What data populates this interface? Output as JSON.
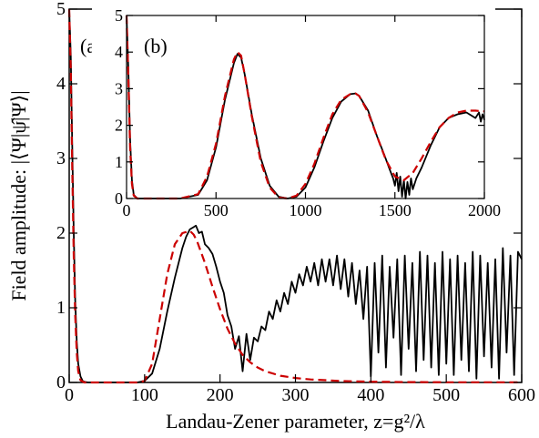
{
  "colors": {
    "numerical": "#000000",
    "analytic": "#cc0000",
    "background": "#ffffff"
  },
  "chart_data": [
    {
      "panel": "(a)",
      "type": "line",
      "xlabel": "Landau-Zener parameter, z=g²/λ",
      "ylabel": "Field amplitude: |⟨Ψ|ψ̂|Ψ⟩|",
      "xlim": [
        0,
        600
      ],
      "ylim": [
        0,
        5
      ],
      "xticks": [
        0,
        100,
        200,
        300,
        400,
        500,
        600
      ],
      "yticks": [
        0,
        1,
        2,
        3,
        4,
        5
      ],
      "grid": false,
      "series": [
        {
          "style": "solid-black",
          "x": [
            0,
            2,
            4,
            6,
            8,
            10,
            12,
            15,
            18,
            20,
            25,
            30,
            40,
            50,
            60,
            70,
            80,
            90,
            100,
            110,
            120,
            130,
            140,
            150,
            155,
            160,
            165,
            168,
            172,
            176,
            180,
            185,
            190,
            195,
            200,
            205,
            210,
            215,
            220,
            225,
            230,
            235,
            240,
            245,
            250,
            255,
            260,
            265,
            270,
            275,
            280,
            285,
            290,
            295,
            300,
            305,
            310,
            315,
            320,
            325,
            330,
            335,
            340,
            345,
            350,
            355,
            360,
            365,
            370,
            375,
            380,
            385,
            390,
            395,
            400,
            405,
            410,
            415,
            420,
            425,
            430,
            435,
            440,
            445,
            450,
            455,
            460,
            465,
            470,
            475,
            480,
            485,
            490,
            495,
            500,
            505,
            510,
            515,
            520,
            525,
            530,
            535,
            540,
            545,
            550,
            555,
            560,
            565,
            570,
            575,
            580,
            585,
            590,
            595,
            600
          ],
          "y": [
            5.0,
            4.4,
            3.2,
            2.0,
            1.1,
            0.55,
            0.25,
            0.08,
            0.02,
            0.01,
            0.0,
            0.0,
            0.0,
            0.0,
            0.0,
            0.0,
            0.0,
            0.0,
            0.02,
            0.12,
            0.45,
            0.95,
            1.4,
            1.8,
            1.95,
            2.05,
            2.08,
            2.1,
            2.0,
            2.02,
            1.85,
            1.8,
            1.72,
            1.55,
            1.35,
            1.2,
            0.9,
            0.75,
            0.45,
            0.62,
            0.15,
            0.65,
            0.3,
            0.6,
            0.55,
            0.75,
            0.7,
            0.95,
            0.85,
            1.1,
            0.95,
            1.2,
            1.05,
            1.35,
            1.2,
            1.45,
            1.3,
            1.55,
            1.35,
            1.6,
            1.3,
            1.65,
            1.35,
            1.65,
            1.3,
            1.7,
            1.25,
            1.65,
            1.15,
            1.6,
            1.05,
            1.5,
            0.85,
            1.55,
            0.08,
            1.6,
            0.4,
            1.7,
            0.2,
            1.55,
            0.6,
            1.65,
            0.1,
            1.7,
            0.45,
            1.6,
            0.15,
            1.75,
            0.3,
            1.7,
            0.2,
            1.6,
            0.1,
            1.75,
            0.25,
            1.65,
            0.1,
            1.7,
            0.3,
            1.6,
            0.15,
            1.75,
            0.05,
            1.7,
            0.35,
            1.6,
            0.2,
            1.65,
            0.05,
            1.8,
            0.4,
            1.7,
            0.1,
            1.75,
            1.65
          ]
        },
        {
          "style": "dashed-red",
          "x": [
            0,
            2,
            4,
            6,
            8,
            10,
            12,
            15,
            20,
            30,
            40,
            50,
            60,
            70,
            80,
            90,
            100,
            110,
            120,
            130,
            140,
            150,
            160,
            165,
            170,
            180,
            190,
            200,
            210,
            220,
            230,
            240,
            250,
            260,
            280,
            300,
            320,
            340,
            360,
            380,
            400,
            450,
            500,
            550,
            600
          ],
          "y": [
            5.0,
            4.2,
            2.9,
            1.7,
            0.9,
            0.4,
            0.15,
            0.03,
            0.0,
            0.0,
            0.0,
            0.0,
            0.0,
            0.0,
            0.0,
            0.0,
            0.02,
            0.25,
            0.85,
            1.45,
            1.85,
            2.0,
            2.03,
            1.98,
            1.88,
            1.6,
            1.28,
            0.98,
            0.72,
            0.52,
            0.37,
            0.27,
            0.2,
            0.15,
            0.09,
            0.06,
            0.04,
            0.03,
            0.02,
            0.015,
            0.01,
            0.005,
            0.003,
            0.002,
            0.001
          ]
        }
      ]
    },
    {
      "panel": "(b)",
      "type": "line",
      "xlabel": "",
      "ylabel": "",
      "xlim": [
        0,
        2000
      ],
      "ylim": [
        0,
        5
      ],
      "xticks": [
        0,
        500,
        1000,
        1500,
        2000
      ],
      "yticks": [
        0,
        1,
        2,
        3,
        4,
        5
      ],
      "grid": false,
      "series": [
        {
          "style": "solid-black",
          "x": [
            0,
            10,
            20,
            30,
            40,
            60,
            100,
            200,
            300,
            400,
            450,
            500,
            550,
            600,
            620,
            640,
            660,
            700,
            750,
            800,
            850,
            900,
            950,
            1000,
            1050,
            1100,
            1150,
            1200,
            1250,
            1280,
            1300,
            1350,
            1400,
            1440,
            1470,
            1490,
            1500,
            1510,
            1520,
            1530,
            1540,
            1550,
            1560,
            1570,
            1580,
            1590,
            1600,
            1620,
            1650,
            1700,
            1750,
            1800,
            1850,
            1900,
            1950,
            1970,
            1980,
            1990,
            2000
          ],
          "y": [
            5.0,
            3.5,
            1.6,
            0.5,
            0.1,
            0.0,
            0.0,
            0.0,
            0.0,
            0.1,
            0.5,
            1.4,
            2.7,
            3.7,
            3.95,
            3.85,
            3.4,
            2.3,
            1.1,
            0.35,
            0.05,
            0.0,
            0.05,
            0.3,
            0.85,
            1.55,
            2.2,
            2.65,
            2.85,
            2.87,
            2.8,
            2.4,
            1.7,
            1.2,
            0.8,
            0.55,
            0.35,
            0.7,
            0.2,
            0.6,
            0.05,
            0.5,
            0.0,
            0.45,
            0.1,
            0.55,
            0.25,
            0.55,
            0.85,
            1.45,
            1.95,
            2.2,
            2.3,
            2.35,
            2.2,
            2.35,
            2.1,
            2.3,
            2.15
          ]
        },
        {
          "style": "dashed-red",
          "x": [
            0,
            10,
            20,
            30,
            40,
            60,
            100,
            200,
            300,
            400,
            450,
            500,
            550,
            600,
            620,
            640,
            660,
            700,
            750,
            800,
            850,
            900,
            950,
            1000,
            1050,
            1100,
            1150,
            1200,
            1250,
            1280,
            1300,
            1350,
            1400,
            1450,
            1500,
            1550,
            1600,
            1650,
            1700,
            1750,
            1800,
            1850,
            1900,
            1950,
            2000
          ],
          "y": [
            5.0,
            3.3,
            1.4,
            0.4,
            0.08,
            0.0,
            0.0,
            0.0,
            0.0,
            0.12,
            0.6,
            1.5,
            2.8,
            3.8,
            4.0,
            3.9,
            3.4,
            2.25,
            1.0,
            0.3,
            0.03,
            0.0,
            0.08,
            0.4,
            0.95,
            1.65,
            2.3,
            2.7,
            2.85,
            2.87,
            2.8,
            2.35,
            1.7,
            1.05,
            0.6,
            0.5,
            0.7,
            1.1,
            1.55,
            1.95,
            2.2,
            2.35,
            2.4,
            2.4,
            2.38
          ]
        }
      ]
    }
  ]
}
